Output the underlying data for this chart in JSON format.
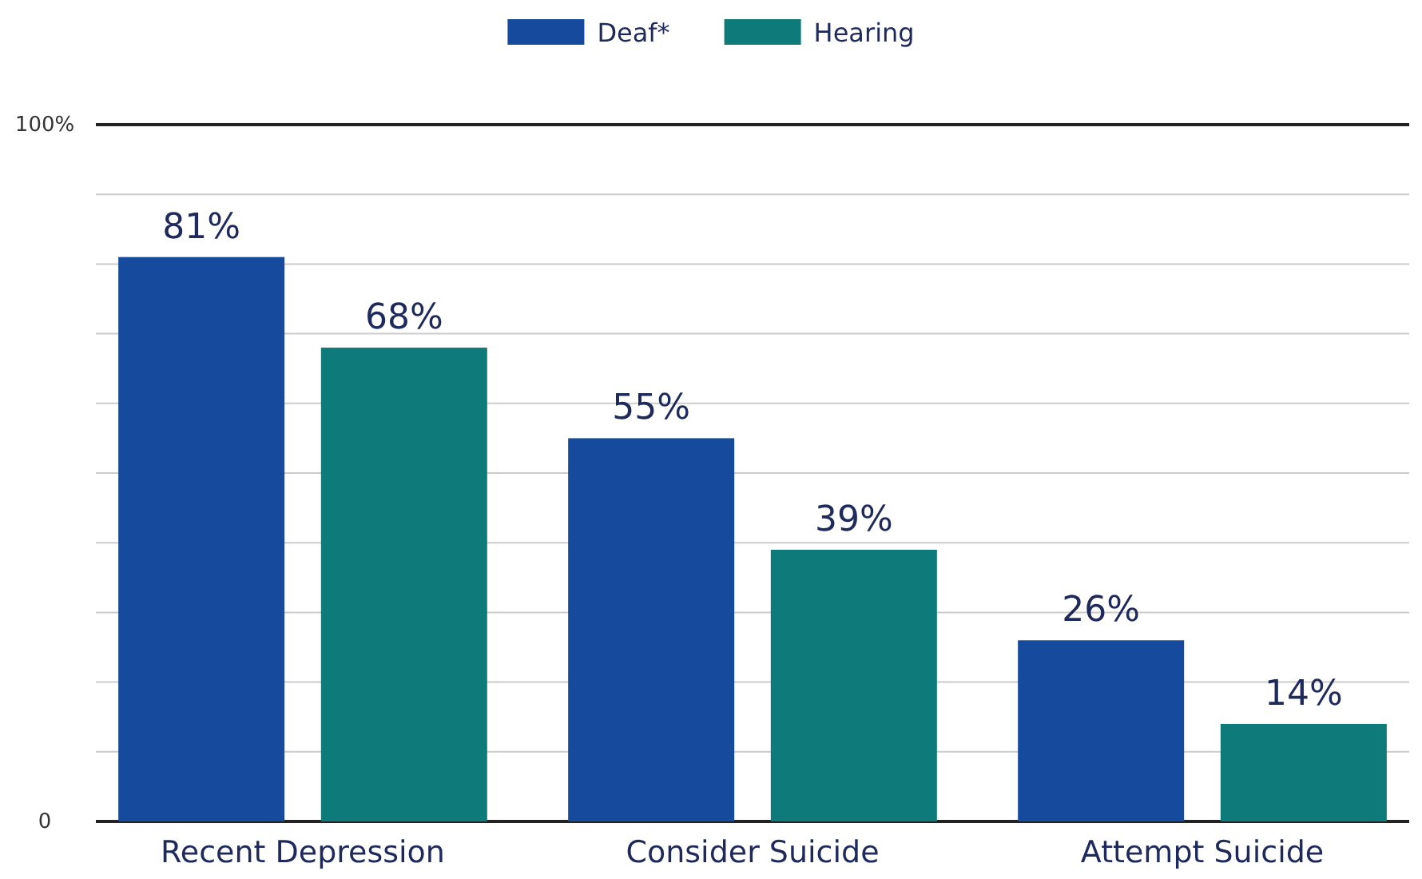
{
  "chart_data": {
    "type": "bar",
    "categories": [
      "Recent Depression",
      "Consider Suicide",
      "Attempt Suicide"
    ],
    "series": [
      {
        "name": "Deaf*",
        "color": "#154a9c",
        "values": [
          81,
          55,
          26
        ],
        "value_labels": [
          "81%",
          "55%",
          "26%"
        ]
      },
      {
        "name": "Hearing",
        "color": "#0f7a7a",
        "values": [
          68,
          39,
          14
        ],
        "value_labels": [
          "68%",
          "39%",
          "14%"
        ]
      }
    ],
    "ylim": [
      0,
      100
    ],
    "yticks": [
      0,
      {
        "value": 10,
        "label": null
      },
      {
        "value": 20,
        "label": null
      },
      {
        "value": 30,
        "label": null
      },
      {
        "value": 40,
        "label": null
      },
      {
        "value": 50,
        "label": null
      },
      {
        "value": 60,
        "label": null
      },
      {
        "value": 70,
        "label": null
      },
      {
        "value": 80,
        "label": null
      },
      {
        "value": 90,
        "label": null
      },
      {
        "value": 100,
        "label": "100%"
      }
    ],
    "grid": "y",
    "legend": "top"
  }
}
